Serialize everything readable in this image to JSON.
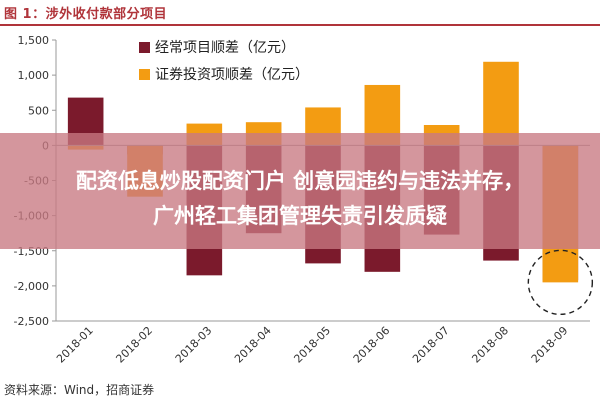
{
  "header": {
    "title": "图 1：涉外收付款部分项目"
  },
  "overlay": {
    "line1": "配资低息炒股配资门户 创意园违约与违法并存，",
    "line2": "广州轻工集团管理失责引发质疑"
  },
  "footer": {
    "source": "资料来源：Wind，招商证券"
  },
  "chart_data": {
    "type": "bar",
    "categories": [
      "2018-01",
      "2018-02",
      "2018-03",
      "2018-04",
      "2018-05",
      "2018-06",
      "2018-07",
      "2018-08",
      "2018-09"
    ],
    "series": [
      {
        "name": "经常项目顺差（亿元）",
        "color": "#7b1a2c",
        "values": [
          680,
          -130,
          -1850,
          -1250,
          -1680,
          -1800,
          -1270,
          -1640,
          -1920
        ]
      },
      {
        "name": "证券投资项顺差（亿元）",
        "color": "#f39c12",
        "values": [
          -60,
          -730,
          310,
          330,
          540,
          860,
          290,
          1190,
          -1950
        ]
      }
    ],
    "ylim": [
      -2500,
      1500
    ],
    "yticks": [
      1500,
      1000,
      500,
      0,
      -500,
      -1000,
      -1500,
      -2000,
      -2500
    ],
    "ytick_labels": [
      "1,500",
      "1,000",
      "500",
      "0",
      "-500",
      "-1,000",
      "-1,500",
      "-2,000",
      "-2,500"
    ],
    "legend_position": "top",
    "grid": false
  }
}
